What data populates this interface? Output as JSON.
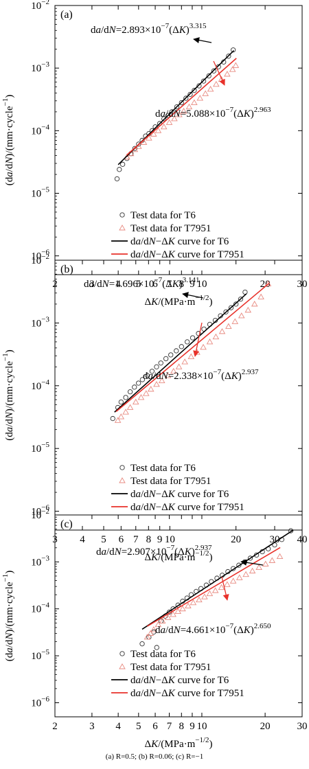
{
  "caption": "(a) R=0.5; (b) R=0.06; (c) R=−1",
  "colors": {
    "t6": "#000000",
    "t7951": "#e8312a",
    "t7951_marker": "#e88a80"
  },
  "chart_data": [
    {
      "type": "scatter",
      "panel_label": "(a)",
      "xlabel": "ΔK/(MPa·m−1/2)",
      "ylabel": "(da/dN)/(mm·cycle−1)",
      "x_scale": "log",
      "y_scale": "log",
      "xlim": [
        2,
        30
      ],
      "ylim": [
        5e-07,
        0.01
      ],
      "xticks": [
        2,
        3,
        4,
        5,
        6,
        7,
        8,
        9,
        10,
        20,
        30
      ],
      "xtick_labels": [
        "2",
        "3",
        "4",
        "5",
        "6",
        "7",
        "8",
        "9",
        "10",
        "20",
        "30"
      ],
      "yticks": [
        1e-06,
        1e-05,
        0.0001,
        0.001,
        0.01
      ],
      "ytick_labels": [
        [
          "10",
          "−6"
        ],
        [
          "10",
          "−5"
        ],
        [
          "10",
          "−4"
        ],
        [
          "10",
          "−3"
        ],
        [
          "10",
          "−2"
        ]
      ],
      "legend": [
        "Test data for T6",
        "Test data for T7951",
        "da/dN−ΔK curve for T6",
        "da/dN−ΔK curve for T7951"
      ],
      "series": [
        {
          "name": "Test data for T6",
          "kind": "points",
          "marker": "circle",
          "x": [
            3.95,
            4.05,
            4.2,
            4.4,
            4.6,
            4.8,
            5.0,
            5.2,
            5.4,
            5.6,
            5.8,
            6.0,
            6.3,
            6.6,
            6.9,
            7.2,
            7.6,
            8.0,
            8.4,
            8.8,
            9.2,
            9.7,
            10.2,
            10.8,
            11.4,
            12.0,
            12.7,
            13.4,
            14.1
          ],
          "y": [
            1.7e-05,
            2.4e-05,
            2.9e-05,
            3.6e-05,
            4.3e-05,
            5.2e-05,
            6.1e-05,
            7e-05,
            8.2e-05,
            9e-05,
            0.0001,
            0.000115,
            0.00013,
            0.000155,
            0.000175,
            0.0002,
            0.00024,
            0.00028,
            0.00033,
            0.00038,
            0.00044,
            0.00052,
            0.00062,
            0.00075,
            0.0009,
            0.00105,
            0.00125,
            0.00155,
            0.00195
          ]
        },
        {
          "name": "Test data for T7951",
          "kind": "points",
          "marker": "triangle",
          "x": [
            4.4,
            4.6,
            4.8,
            5.0,
            5.3,
            5.6,
            5.9,
            6.2,
            6.6,
            7.0,
            7.4,
            7.8,
            8.2,
            8.7,
            9.2,
            9.8,
            10.4,
            11.0,
            11.7,
            12.4,
            13.2,
            14.0,
            14.5
          ],
          "y": [
            3.8e-05,
            4.3e-05,
            5e-05,
            5.6e-05,
            6.5e-05,
            7.6e-05,
            8.8e-05,
            0.0001,
            0.000115,
            0.000135,
            0.000155,
            0.00018,
            0.000205,
            0.00024,
            0.00028,
            0.00033,
            0.00039,
            0.00046,
            0.00055,
            0.00066,
            0.0008,
            0.00095,
            0.0011
          ]
        },
        {
          "name": "da/dN−ΔK curve for T6",
          "kind": "line",
          "coefficient": 2.893e-07,
          "exponent": 3.315,
          "x_range": [
            4.0,
            14.2
          ]
        },
        {
          "name": "da/dN−ΔK curve for T7951",
          "kind": "line",
          "coefficient": 5.088e-07,
          "exponent": 2.963,
          "x_range": [
            4.4,
            14.6
          ]
        }
      ],
      "annotations": [
        {
          "for": "T6",
          "prefix": "da/dN=2.893×10",
          "exp": "−7",
          "mid": "(ΔK)",
          "power": "3.315"
        },
        {
          "for": "T7951",
          "prefix": "da/dN=5.088×10",
          "exp": "−7",
          "mid": "(ΔK)",
          "power": "2.963"
        }
      ]
    },
    {
      "type": "scatter",
      "panel_label": "(b)",
      "xlabel": "ΔK/(MPa·m−1/2)",
      "ylabel": "(da/dN)/(mm·cycle−1)",
      "x_scale": "log",
      "y_scale": "log",
      "xlim": [
        3,
        40
      ],
      "ylim": [
        5e-07,
        0.01
      ],
      "xticks": [
        3,
        4,
        5,
        6,
        7,
        8,
        9,
        10,
        20,
        30,
        40
      ],
      "xtick_labels": [
        "3",
        "4",
        "5",
        "6",
        "7",
        "8",
        "9",
        "10",
        "20",
        "30",
        "40"
      ],
      "yticks": [
        1e-06,
        1e-05,
        0.0001,
        0.001,
        0.01
      ],
      "ytick_labels": [
        [
          "10",
          "−6"
        ],
        [
          "10",
          "−5"
        ],
        [
          "10",
          "−4"
        ],
        [
          "10",
          "−3"
        ],
        [
          "10",
          "−2"
        ]
      ],
      "legend": [
        "Test data for T6",
        "Test data for T7951",
        "da/dN−ΔK curve for T6",
        "da/dN−ΔK curve for T7951"
      ],
      "series": [
        {
          "name": "Test data for T6",
          "kind": "points",
          "marker": "circle",
          "x": [
            5.5,
            5.8,
            6.0,
            6.3,
            6.6,
            6.9,
            7.2,
            7.5,
            7.9,
            8.3,
            8.7,
            9.1,
            9.6,
            10.1,
            10.7,
            11.3,
            12.0,
            12.7,
            13.5,
            14.3,
            15.2,
            16.1,
            17.0,
            18.0,
            19.0,
            20.0,
            21.0,
            22.0
          ],
          "y": [
            3e-05,
            4.5e-05,
            5.5e-05,
            6.5e-05,
            8e-05,
            9.5e-05,
            0.00011,
            0.000125,
            0.000145,
            0.00017,
            0.0002,
            0.00023,
            0.00027,
            0.00031,
            0.00036,
            0.00042,
            0.0005,
            0.00058,
            0.00068,
            0.0008,
            0.00095,
            0.0011,
            0.0013,
            0.0015,
            0.00175,
            0.002,
            0.0024,
            0.0031
          ]
        },
        {
          "name": "Test data for T7951",
          "kind": "points",
          "marker": "triangle",
          "x": [
            5.8,
            6.0,
            6.3,
            6.6,
            7.0,
            7.4,
            7.8,
            8.2,
            8.7,
            9.2,
            9.8,
            10.4,
            11.0,
            11.7,
            12.5,
            13.3,
            14.2,
            15.2,
            16.2,
            17.3,
            18.5,
            19.8,
            21.2,
            22.7,
            24.3,
            26.0,
            28.0
          ],
          "y": [
            2.8e-05,
            3.2e-05,
            3.8e-05,
            4.5e-05,
            5.5e-05,
            6.5e-05,
            7.5e-05,
            8.8e-05,
            0.000105,
            0.00012,
            0.000145,
            0.00017,
            0.0002,
            0.00024,
            0.00029,
            0.00034,
            0.00041,
            0.0005,
            0.0006,
            0.00073,
            0.00088,
            0.00105,
            0.0013,
            0.0016,
            0.002,
            0.0026,
            0.0042
          ]
        },
        {
          "name": "da/dN−ΔK curve for T6",
          "kind": "line",
          "coefficient": 1.696e-07,
          "exponent": 3.141,
          "x_range": [
            5.6,
            22.3
          ]
        },
        {
          "name": "da/dN−ΔK curve for T7951",
          "kind": "line",
          "coefficient": 2.338e-07,
          "exponent": 2.937,
          "x_range": [
            5.7,
            28.3
          ]
        }
      ],
      "annotations": [
        {
          "for": "T6",
          "prefix": "da/dN=1.696×10",
          "exp": "−7",
          "mid": "(ΔK)",
          "power": "3.141"
        },
        {
          "for": "T7951",
          "prefix": "da/dN=2.338×10",
          "exp": "−7",
          "mid": "(ΔK)",
          "power": "2.937"
        }
      ]
    },
    {
      "type": "scatter",
      "panel_label": "(c)",
      "xlabel": "ΔK/(MPa·m−1/2)",
      "ylabel": "(da/dN)/(mm·cycle−1)",
      "x_scale": "log",
      "y_scale": "log",
      "xlim": [
        2,
        30
      ],
      "ylim": [
        5e-07,
        0.01
      ],
      "xticks": [
        2,
        3,
        4,
        5,
        6,
        7,
        8,
        9,
        10,
        20,
        30
      ],
      "xtick_labels": [
        "2",
        "3",
        "4",
        "5",
        "6",
        "7",
        "8",
        "9",
        "10",
        "20",
        "30"
      ],
      "yticks": [
        1e-06,
        1e-05,
        0.0001,
        0.001,
        0.01
      ],
      "ytick_labels": [
        [
          "10",
          "−6"
        ],
        [
          "10",
          "−5"
        ],
        [
          "10",
          "−4"
        ],
        [
          "10",
          "−3"
        ],
        [
          "10",
          "−2"
        ]
      ],
      "legend": [
        "Test data for T6",
        "Test data for T7951",
        "da/dN−ΔK curve for T6",
        "da/dN−ΔK curve for T7951"
      ],
      "series": [
        {
          "name": "Test data for T6",
          "kind": "points",
          "marker": "circle",
          "x": [
            5.2,
            5.6,
            5.9,
            6.1,
            6.4,
            6.7,
            7.0,
            7.3,
            7.7,
            8.1,
            8.5,
            8.9,
            9.4,
            9.9,
            10.5,
            11.1,
            11.8,
            12.5,
            13.3,
            14.1,
            15.0,
            16.0,
            17.0,
            18.2,
            19.4,
            20.7,
            22.2,
            24.0,
            26.5
          ],
          "y": [
            1.8e-05,
            2.5e-05,
            3.2e-05,
            1.5e-05,
            5.5e-05,
            7e-05,
            8.5e-05,
            0.0001,
            0.00012,
            0.000145,
            0.00017,
            0.0002,
            0.000235,
            0.00027,
            0.00032,
            0.00038,
            0.00045,
            0.00052,
            0.00062,
            0.00072,
            0.00085,
            0.001,
            0.0012,
            0.0014,
            0.00165,
            0.0019,
            0.0023,
            0.003,
            0.0046
          ]
        },
        {
          "name": "Test data for T7951",
          "kind": "points",
          "marker": "triangle",
          "x": [
            5.5,
            5.7,
            5.9,
            6.2,
            6.5,
            6.9,
            7.3,
            7.7,
            8.1,
            8.6,
            9.1,
            9.7,
            10.3,
            10.9,
            11.6,
            12.4,
            13.2,
            14.1,
            15.1,
            16.2,
            17.4,
            18.7,
            20.1,
            21.6,
            23.5
          ],
          "y": [
            2.5e-05,
            3e-05,
            3.6e-05,
            4.6e-05,
            5.5e-05,
            6.5e-05,
            7.6e-05,
            8.8e-05,
            0.0001,
            0.000115,
            0.000135,
            0.000155,
            0.00018,
            0.00021,
            0.000245,
            0.000285,
            0.00033,
            0.00039,
            0.00046,
            0.00054,
            0.00064,
            0.00076,
            0.0009,
            0.00107,
            0.0013
          ]
        },
        {
          "name": "da/dN−ΔK curve for T6",
          "kind": "line",
          "coefficient": 2.907e-07,
          "exponent": 2.937,
          "x_range": [
            5.2,
            27.2
          ]
        },
        {
          "name": "da/dN−ΔK curve for T7951",
          "kind": "line",
          "coefficient": 4.661e-07,
          "exponent": 2.65,
          "x_range": [
            5.5,
            23.6
          ]
        }
      ],
      "annotations": [
        {
          "for": "T6",
          "prefix": "da/dN=2.907×10",
          "exp": "−7",
          "mid": "(ΔK)",
          "power": "2.937"
        },
        {
          "for": "T7951",
          "prefix": "da/dN=4.661×10",
          "exp": "−7",
          "mid": "(ΔK)",
          "power": "2.650"
        }
      ]
    }
  ]
}
